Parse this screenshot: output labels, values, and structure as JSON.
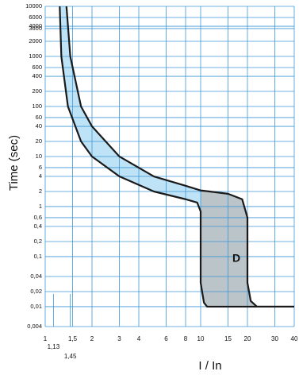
{
  "chart_data": {
    "type": "trip-curve",
    "annotation": "D",
    "x_label": "I / In",
    "y_label": "Time (sec)",
    "log_x": true,
    "log_y": true,
    "grid": true,
    "grid_color": "#3d97d6",
    "line_color": "#1a1a1a",
    "band_color": "#bfe3f6",
    "zone_color": "#b9b9b9",
    "xlim": [
      1,
      40
    ],
    "ylim": [
      0.004,
      10000
    ],
    "xticks": [
      1,
      {
        "value": 1.5,
        "label": "1,5"
      },
      2,
      3,
      4,
      6,
      8,
      10,
      15,
      20,
      30,
      40
    ],
    "xticks_minor": [
      {
        "value": 1.13,
        "label": "1,13"
      },
      {
        "value": 1.45,
        "label": "1,45"
      }
    ],
    "yticks": [
      10000,
      6000,
      4000,
      3600,
      2000,
      1000,
      600,
      400,
      200,
      100,
      60,
      40,
      20,
      10,
      6,
      4,
      2,
      1,
      {
        "value": 0.6,
        "label": "0,6"
      },
      {
        "value": 0.4,
        "label": "0,4"
      },
      {
        "value": 0.2,
        "label": "0,2"
      },
      {
        "value": 0.1,
        "label": "0,1"
      },
      {
        "value": 0.04,
        "label": "0,04"
      },
      {
        "value": 0.02,
        "label": "0,02"
      },
      {
        "value": 0.01,
        "label": "0,01"
      },
      {
        "value": 0.004,
        "label": "0,004"
      }
    ],
    "zone_start": 10,
    "series": [
      {
        "x": [
          1.24,
          1.27,
          1.4,
          1.7,
          2,
          3,
          5,
          8,
          9.5,
          10,
          10,
          10.5,
          11,
          40
        ],
        "values": [
          10000,
          1000,
          100,
          20,
          10,
          4,
          2,
          1.4,
          1.2,
          0.8,
          0.03,
          0.012,
          0.01,
          0.01
        ]
      },
      {
        "x": [
          1.37,
          1.45,
          1.7,
          2,
          3,
          5,
          8,
          10,
          15,
          18.5,
          20,
          20,
          21,
          23,
          40
        ],
        "values": [
          10000,
          1000,
          100,
          40,
          10,
          4,
          2.6,
          2.1,
          1.8,
          1.4,
          0.6,
          0.03,
          0.013,
          0.01,
          0.01
        ]
      }
    ]
  }
}
